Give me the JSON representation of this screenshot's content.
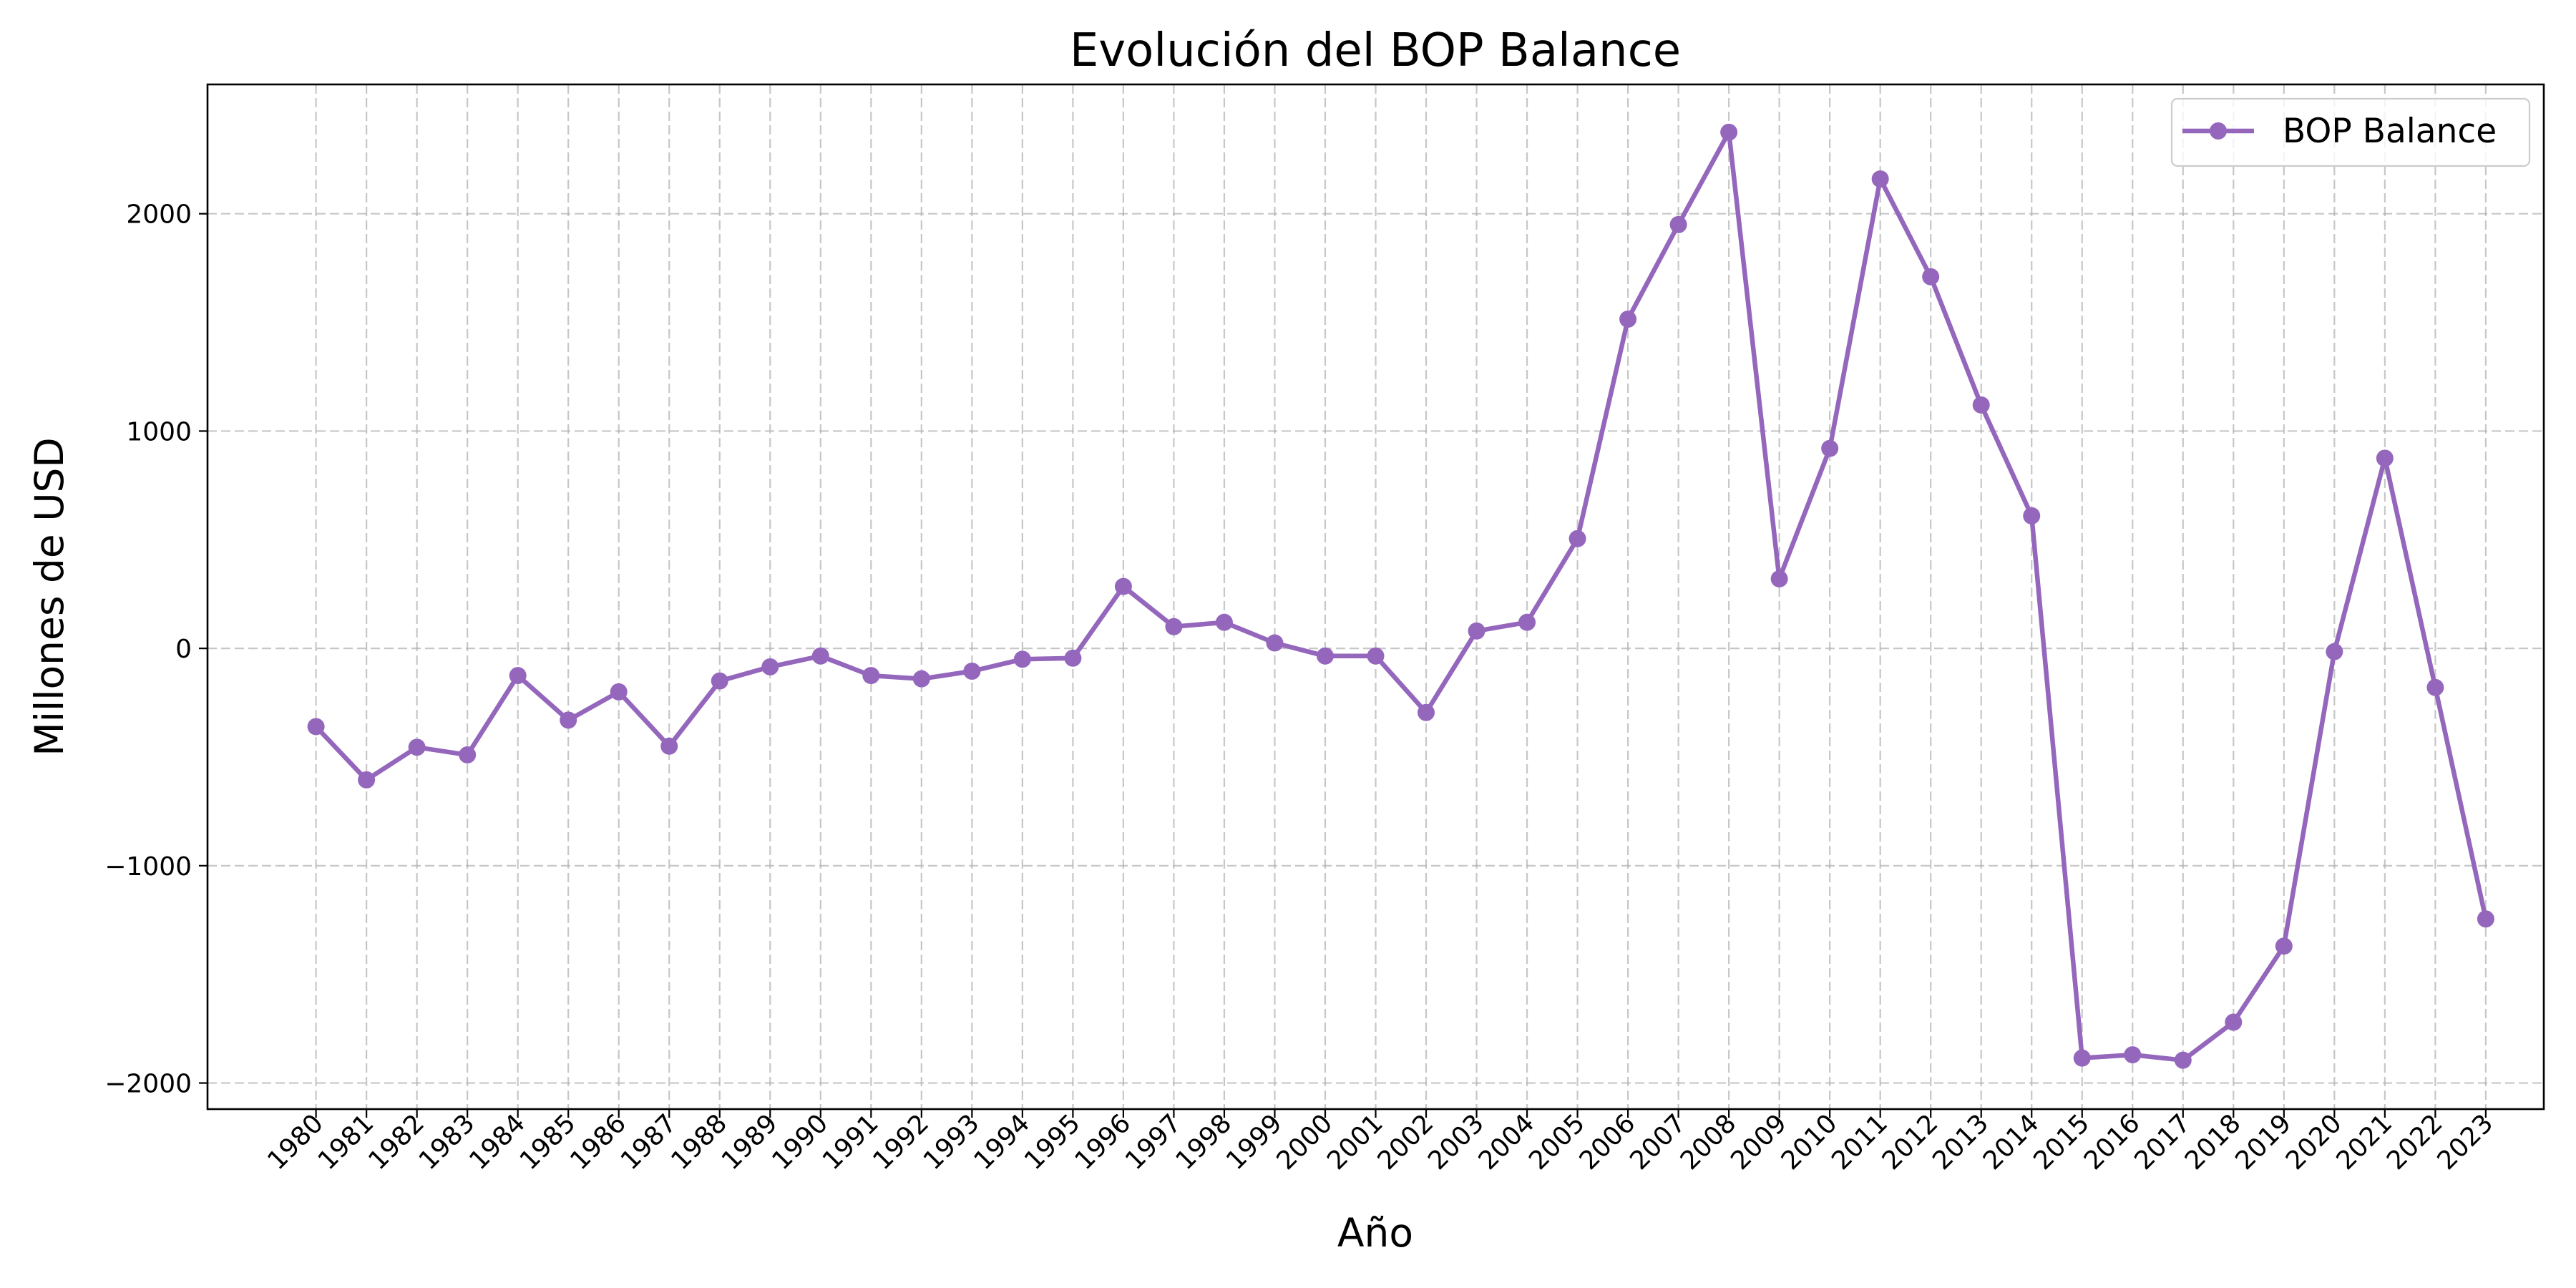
{
  "chart_data": {
    "type": "line",
    "title": "Evolución del BOP Balance",
    "xlabel": "Año",
    "ylabel": "Millones de USD",
    "categories": [
      "1980",
      "1981",
      "1982",
      "1983",
      "1984",
      "1985",
      "1986",
      "1987",
      "1988",
      "1989",
      "1990",
      "1991",
      "1992",
      "1993",
      "1994",
      "1995",
      "1996",
      "1997",
      "1998",
      "1999",
      "2000",
      "2001",
      "2002",
      "2003",
      "2004",
      "2005",
      "2006",
      "2007",
      "2008",
      "2009",
      "2010",
      "2011",
      "2012",
      "2013",
      "2014",
      "2015",
      "2016",
      "2017",
      "2018",
      "2019",
      "2020",
      "2021",
      "2022",
      "2023"
    ],
    "series": [
      {
        "name": "BOP Balance",
        "color": "#9467bd",
        "marker": "circle",
        "values": [
          -360,
          -605,
          -455,
          -490,
          -125,
          -330,
          -200,
          -450,
          -150,
          -85,
          -35,
          -125,
          -140,
          -105,
          -50,
          -45,
          285,
          100,
          120,
          25,
          -35,
          -35,
          -295,
          80,
          120,
          505,
          1515,
          1950,
          2375,
          320,
          920,
          2160,
          1710,
          1120,
          610,
          -1885,
          -1870,
          -1895,
          -1720,
          -1370,
          -15,
          875,
          -180,
          -1245
        ]
      }
    ],
    "yticks": [
      -2000,
      -1000,
      0,
      1000,
      2000
    ],
    "ytick_labels": [
      "−2000",
      "−1000",
      "0",
      "1000",
      "2000"
    ],
    "ylim": [
      -2120,
      2595
    ],
    "xlim_index": [
      -2.15,
      44.15
    ],
    "grid": true,
    "legend": {
      "position": "top-right",
      "entries": [
        "BOP Balance"
      ]
    }
  }
}
